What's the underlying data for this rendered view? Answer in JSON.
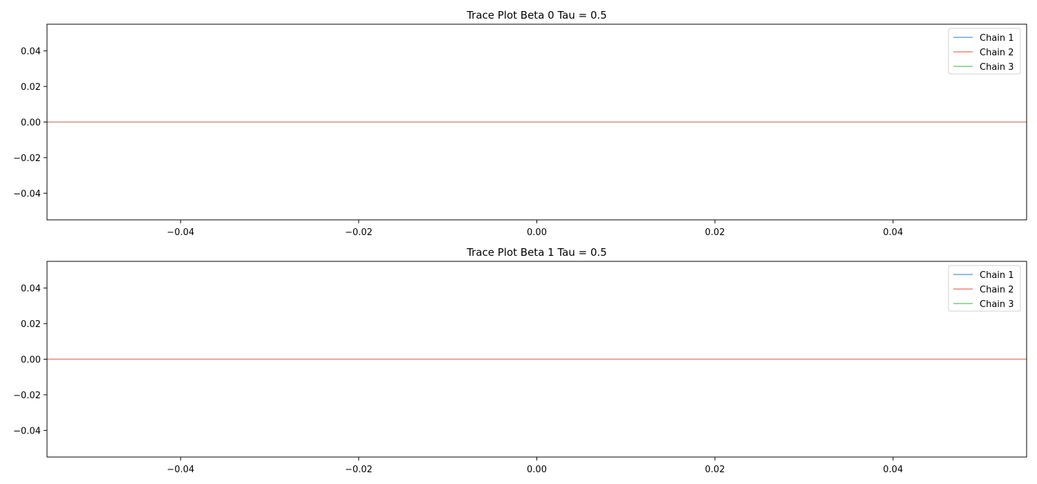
{
  "chart_data": [
    {
      "type": "line",
      "title": "Trace Plot Beta 0 Tau = 0.5",
      "xlim": [
        -0.055,
        0.055
      ],
      "ylim": [
        -0.055,
        0.055
      ],
      "xticks": [
        -0.04,
        -0.02,
        0.0,
        0.02,
        0.04
      ],
      "xtick_labels": [
        "−0.04",
        "−0.02",
        "0.00",
        "0.02",
        "0.04"
      ],
      "yticks": [
        0.04,
        0.02,
        0.0,
        -0.02,
        -0.04
      ],
      "ytick_labels": [
        "0.04",
        "0.02",
        "0.00",
        "−0.02",
        "−0.04"
      ],
      "grid": false,
      "legend_position": "top-right",
      "series": [
        {
          "name": "Chain 1",
          "color": "#7fb3d5",
          "x": [
            -0.055,
            0.055
          ],
          "y": [
            0.0,
            0.0
          ]
        },
        {
          "name": "Chain 2",
          "color": "#f1948a",
          "x": [
            -0.055,
            0.055
          ],
          "y": [
            0.0,
            0.0
          ]
        },
        {
          "name": "Chain 3",
          "color": "#8fd18f",
          "x": [
            -0.055,
            0.055
          ],
          "y": [
            0.0,
            0.0
          ]
        }
      ]
    },
    {
      "type": "line",
      "title": "Trace Plot Beta 1 Tau = 0.5",
      "xlim": [
        -0.055,
        0.055
      ],
      "ylim": [
        -0.055,
        0.055
      ],
      "xticks": [
        -0.04,
        -0.02,
        0.0,
        0.02,
        0.04
      ],
      "xtick_labels": [
        "−0.04",
        "−0.02",
        "0.00",
        "0.02",
        "0.04"
      ],
      "yticks": [
        0.04,
        0.02,
        0.0,
        -0.02,
        -0.04
      ],
      "ytick_labels": [
        "0.04",
        "0.02",
        "0.00",
        "−0.02",
        "−0.04"
      ],
      "grid": false,
      "legend_position": "top-right",
      "series": [
        {
          "name": "Chain 1",
          "color": "#7fb3d5",
          "x": [
            -0.055,
            0.055
          ],
          "y": [
            0.0,
            0.0
          ]
        },
        {
          "name": "Chain 2",
          "color": "#f1948a",
          "x": [
            -0.055,
            0.055
          ],
          "y": [
            0.0,
            0.0
          ]
        },
        {
          "name": "Chain 3",
          "color": "#8fd18f",
          "x": [
            -0.055,
            0.055
          ],
          "y": [
            0.0,
            0.0
          ]
        }
      ]
    }
  ]
}
